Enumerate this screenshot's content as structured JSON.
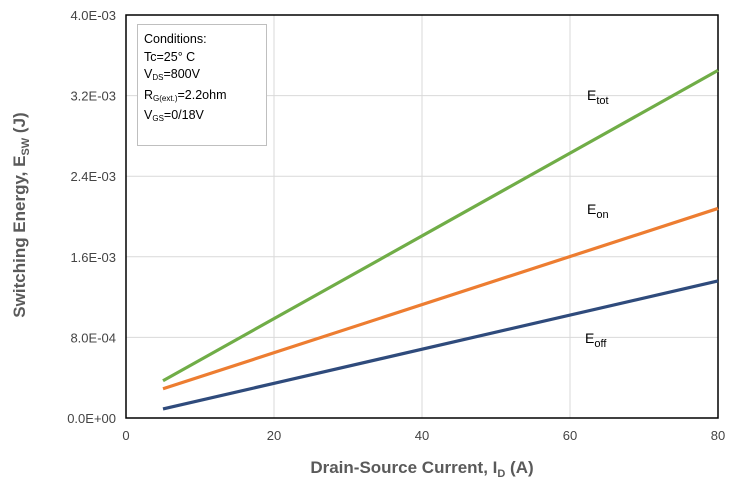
{
  "chart_data": {
    "type": "line",
    "xlabel": {
      "main": "Drain-Source Current, I",
      "sub": "D",
      "suffix": " (A)"
    },
    "ylabel": {
      "main": "Switching Energy, E",
      "sub": "SW",
      "suffix": " (J)"
    },
    "xlim": [
      0,
      80
    ],
    "ylim": [
      0,
      0.004
    ],
    "x_ticks": [
      0,
      20,
      40,
      60,
      80
    ],
    "x_tick_labels": [
      "0",
      "20",
      "40",
      "60",
      "80"
    ],
    "y_ticks": [
      0,
      0.0008,
      0.0016,
      0.0024,
      0.0032,
      0.004
    ],
    "y_tick_labels": [
      "0.0E+00",
      "8.0E-04",
      "1.6E-03",
      "2.4E-03",
      "3.2E-03",
      "4.0E-03"
    ],
    "grid": true,
    "legend": "inline labels next to lines",
    "series": [
      {
        "name": "E_tot",
        "label_main": "E",
        "label_sub": "tot",
        "color": "#70ad47",
        "x": [
          5,
          80
        ],
        "y": [
          0.00037,
          0.00345
        ]
      },
      {
        "name": "E_on",
        "label_main": "E",
        "label_sub": "on",
        "color": "#ed7d31",
        "x": [
          5,
          80
        ],
        "y": [
          0.00029,
          0.00208
        ]
      },
      {
        "name": "E_off",
        "label_main": "E",
        "label_sub": "off",
        "color": "#2f4b7c",
        "x": [
          5,
          80
        ],
        "y": [
          9e-05,
          0.00136
        ]
      }
    ]
  },
  "conditions": {
    "title": "Conditions:",
    "tc": {
      "main": "Tc=25°  C"
    },
    "vds": {
      "main": "V",
      "sub": "DS",
      "value": "=800V"
    },
    "rg": {
      "main": "R",
      "sub": "G(ext.)",
      "value": "=2.2ohm"
    },
    "vgs": {
      "main": "V",
      "sub": "GS",
      "value": "=0/18V"
    }
  }
}
